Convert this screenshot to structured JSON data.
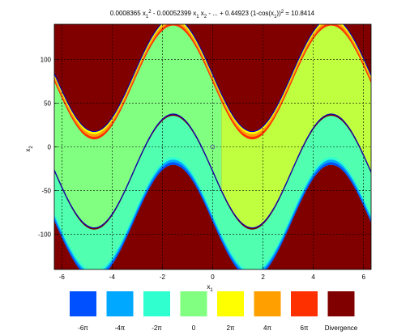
{
  "chart_data": {
    "type": "heatmap",
    "title_parts": {
      "t1": "0.0008365 x",
      "t1s": "1",
      "t1e": "2",
      "t2": " - 0.00052399 x",
      "t2s": "1",
      "t3": " x",
      "t3s": "2",
      "t4": " - ... + 0.44923 (1-cos(x",
      "t4s": "1",
      "t5": "))",
      "t5e": "2",
      "t6": " = 10.8414"
    },
    "xlabel": "x",
    "xlabel_sub": "1",
    "ylabel": "x",
    "ylabel_sub": "2",
    "xlim": [
      -6.3,
      6.3
    ],
    "ylim": [
      -140,
      140
    ],
    "xticks": [
      -6,
      -4,
      -2,
      0,
      2,
      4,
      6
    ],
    "yticks": [
      -100,
      -50,
      0,
      50,
      100
    ],
    "grid": true,
    "marker_point": [
      0,
      0
    ],
    "curves": {
      "amplitude": 65,
      "upper_offset": 82.5,
      "lower_offset": -27.5
    },
    "regions": [
      {
        "name": "top",
        "color": "#800000"
      },
      {
        "name": "upper-left-band",
        "color": "#80FF80"
      },
      {
        "name": "upper-right-band",
        "color": "#C0FF40"
      },
      {
        "name": "middle-band",
        "color": "#50FFB0"
      },
      {
        "name": "bottom",
        "color": "#800000"
      }
    ],
    "legend": [
      {
        "label": "-6π",
        "color": "#0050FF"
      },
      {
        "label": "-4π",
        "color": "#00A8FF"
      },
      {
        "label": "-2π",
        "color": "#30FFD0"
      },
      {
        "label": "0",
        "color": "#80FF80"
      },
      {
        "label": "2π",
        "color": "#FFFF00"
      },
      {
        "label": "4π",
        "color": "#FFA000"
      },
      {
        "label": "6π",
        "color": "#FF3000"
      },
      {
        "label": "Divergence",
        "color": "#800000"
      }
    ]
  }
}
